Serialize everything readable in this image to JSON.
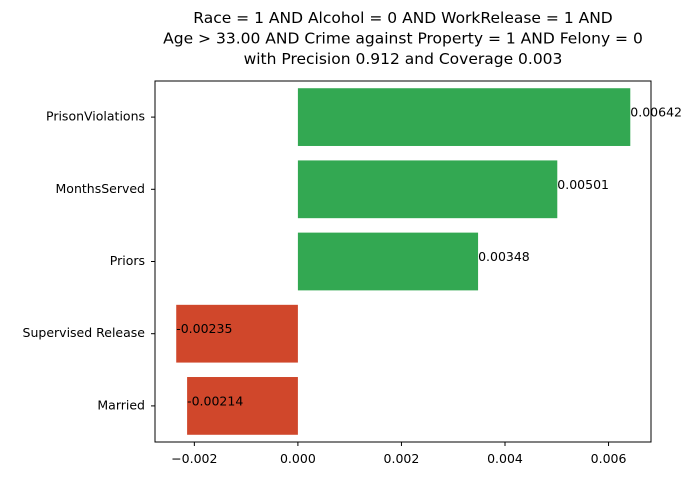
{
  "chart_data": {
    "type": "bar",
    "orientation": "horizontal",
    "title_lines": [
      "Race = 1 AND Alcohol = 0 AND WorkRelease = 1 AND",
      "Age > 33.00 AND Crime against Property = 1 AND Felony = 0",
      "with Precision 0.912 and Coverage 0.003"
    ],
    "categories": [
      "PrisonViolations",
      "MonthsServed",
      "Priors",
      "Supervised Release",
      "Married"
    ],
    "values": [
      0.00642,
      0.00501,
      0.00348,
      -0.00235,
      -0.00214
    ],
    "value_labels": [
      "0.00642",
      "0.00501",
      "0.00348",
      "-0.00235",
      "-0.00214"
    ],
    "xticks": [
      -0.002,
      0.0,
      0.002,
      0.004,
      0.006
    ],
    "xtick_labels": [
      "−0.002",
      "0.000",
      "0.002",
      "0.004",
      "0.006"
    ],
    "xlim": [
      -0.00276,
      0.00682
    ],
    "positive_color": "#33a852",
    "negative_color": "#d0472b",
    "xlabel": "",
    "ylabel": "",
    "grid": false
  }
}
